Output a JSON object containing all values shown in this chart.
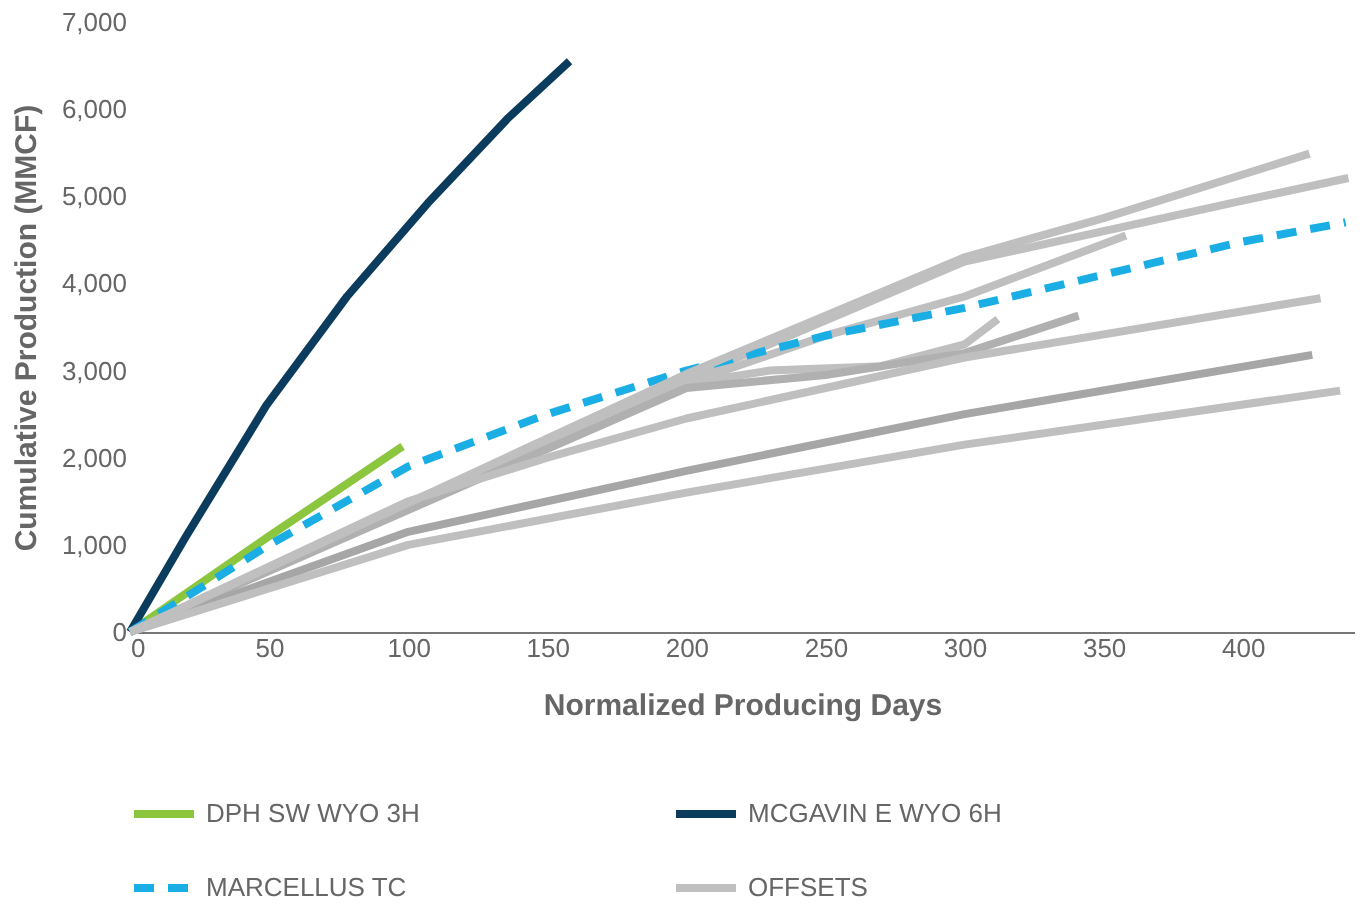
{
  "chart_data": {
    "type": "line",
    "xlabel": "Normalized Producing Days",
    "ylabel": "Cumulative Production (MMCF)",
    "xlim": [
      0,
      440
    ],
    "xticks": [
      0,
      50,
      100,
      150,
      200,
      250,
      300,
      350,
      400
    ],
    "ylim": [
      0,
      7000
    ],
    "yticks": [
      {
        "value": 0,
        "label": "0"
      },
      {
        "value": 1000,
        "label": "1,000"
      },
      {
        "value": 2000,
        "label": "2,000"
      },
      {
        "value": 3000,
        "label": "3,000"
      },
      {
        "value": 4000,
        "label": "4,000"
      },
      {
        "value": 5000,
        "label": "5,000"
      },
      {
        "value": 6000,
        "label": "6,000"
      },
      {
        "value": 7000,
        "label": "7,000"
      }
    ],
    "grid": false,
    "legend": "bottom",
    "marker": "none",
    "series": [
      {
        "name": "DPH SW WYO 3H",
        "color": "#8cc63f",
        "x": [
          0,
          50,
          98
        ],
        "values": [
          0,
          1100,
          2130
        ]
      },
      {
        "name": "MCGAVIN E WYO 6H",
        "color": "#0b3c5d",
        "x": [
          0,
          20,
          49,
          78,
          107,
          136,
          158
        ],
        "values": [
          0,
          1090,
          2600,
          3850,
          4920,
          5900,
          6550
        ]
      },
      {
        "name": "MARCELLUS TC",
        "color": "#1aaee5",
        "line_style": "dashed",
        "x": [
          0,
          50,
          100,
          150,
          200,
          250,
          300,
          350,
          400,
          437
        ],
        "values": [
          0,
          1000,
          1900,
          2500,
          3000,
          3400,
          3720,
          4100,
          4480,
          4700
        ]
      },
      {
        "name": "OFFSETS",
        "color": "#bfbfbf",
        "x": [
          0,
          200,
          300,
          350,
          424
        ],
        "values": [
          0,
          2960,
          4300,
          4750,
          5490
        ]
      },
      {
        "color": "#bfbfbf",
        "x": [
          0,
          200,
          300,
          400,
          438
        ],
        "values": [
          0,
          2900,
          4250,
          4950,
          5210
        ]
      },
      {
        "color": "#bfbfbf",
        "x": [
          0,
          200,
          250,
          300,
          358
        ],
        "values": [
          0,
          2850,
          3400,
          3850,
          4550
        ]
      },
      {
        "color": "#bfbfbf",
        "x": [
          0,
          200,
          230,
          270,
          300,
          312
        ],
        "values": [
          0,
          2850,
          3000,
          3050,
          3300,
          3590
        ]
      },
      {
        "color": "#b0b0b0",
        "x": [
          0,
          200,
          250,
          300,
          341
        ],
        "values": [
          0,
          2800,
          2950,
          3200,
          3630
        ]
      },
      {
        "color": "#bfbfbf",
        "x": [
          0,
          100,
          150,
          200,
          250,
          300,
          428
        ],
        "values": [
          0,
          1500,
          2000,
          2450,
          2800,
          3150,
          3830
        ]
      },
      {
        "color": "#a6a6a6",
        "x": [
          0,
          100,
          200,
          300,
          425
        ],
        "values": [
          0,
          1150,
          1850,
          2500,
          3180
        ]
      },
      {
        "color": "#bfbfbf",
        "x": [
          0,
          100,
          200,
          300,
          435
        ],
        "values": [
          0,
          1000,
          1600,
          2150,
          2770
        ]
      }
    ]
  }
}
